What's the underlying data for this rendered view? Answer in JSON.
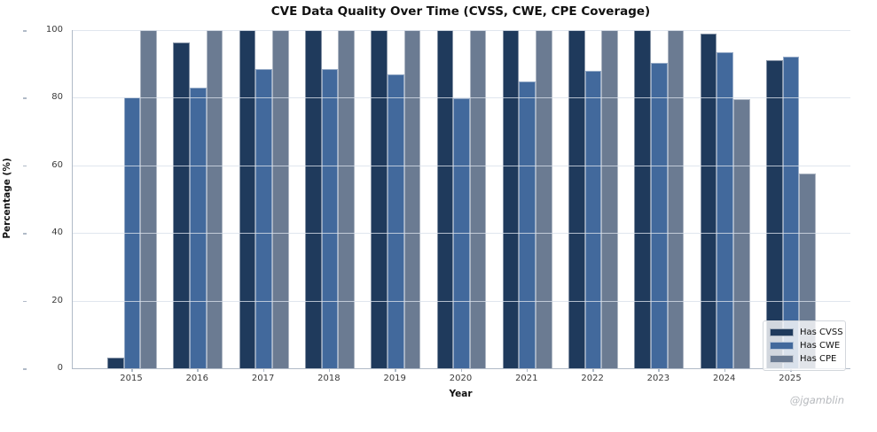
{
  "title": "CVE Data Quality Over Time (CVSS, CWE, CPE Coverage)",
  "watermark": "@jgamblin",
  "chart_data": {
    "type": "bar",
    "title": "CVE Data Quality Over Time (CVSS, CWE, CPE Coverage)",
    "xlabel": "Year",
    "ylabel": "Percentage (%)",
    "categories": [
      "2015",
      "2016",
      "2017",
      "2018",
      "2019",
      "2020",
      "2021",
      "2022",
      "2023",
      "2024",
      "2025"
    ],
    "series": [
      {
        "name": "Has CVSS",
        "color": "#1f3a5c",
        "values": [
          3.1,
          96.4,
          100,
          100,
          100,
          100,
          100,
          100,
          100,
          99.0,
          91.0
        ]
      },
      {
        "name": "Has CWE",
        "color": "#42699c",
        "values": [
          80.0,
          83.1,
          88.4,
          88.5,
          86.8,
          79.9,
          84.7,
          87.9,
          90.3,
          93.4,
          92.1
        ]
      },
      {
        "name": "Has CPE",
        "color": "#6b7b92",
        "values": [
          100,
          100,
          100,
          100,
          100,
          100,
          100,
          100,
          100,
          79.5,
          57.6
        ]
      }
    ],
    "ylim": [
      0,
      100
    ],
    "yticks": [
      0,
      20,
      40,
      60,
      80,
      100
    ],
    "grid": true,
    "legend_position": "lower right"
  }
}
